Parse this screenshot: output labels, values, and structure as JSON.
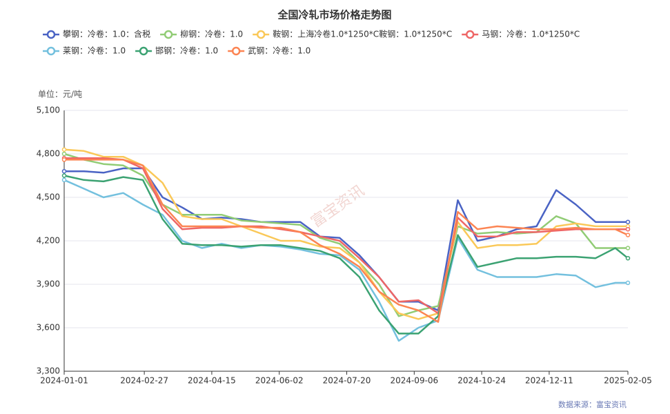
{
  "chart_data": {
    "type": "line",
    "title": "全国冷轧市场价格走势图",
    "y_label": "单位：元/吨",
    "source": "数据来源：富宝资讯",
    "watermark": "富宝资讯",
    "x": [
      "2024-01-01",
      "2024-01-15",
      "2024-01-29",
      "2024-02-12",
      "2024-02-26",
      "2024-03-11",
      "2024-03-25",
      "2024-04-08",
      "2024-04-22",
      "2024-05-06",
      "2024-05-20",
      "2024-06-03",
      "2024-06-17",
      "2024-07-01",
      "2024-07-15",
      "2024-07-29",
      "2024-08-12",
      "2024-08-26",
      "2024-09-09",
      "2024-09-23",
      "2024-10-07",
      "2024-10-21",
      "2024-11-04",
      "2024-11-18",
      "2024-12-02",
      "2024-12-16",
      "2024-12-30",
      "2025-01-13",
      "2025-01-27",
      "2025-02-05"
    ],
    "xlim": [
      "2024-01-01",
      "2025-02-05"
    ],
    "xticks": [
      "2024-01-01",
      "2024-02-27",
      "2024-04-15",
      "2024-06-02",
      "2024-07-20",
      "2024-09-06",
      "2024-10-24",
      "2024-12-11",
      "2025-02-05"
    ],
    "ylim": [
      3300,
      5100
    ],
    "yticks": [
      {
        "value": 3300,
        "label": "3,300"
      },
      {
        "value": 3600,
        "label": "3,600"
      },
      {
        "value": 3900,
        "label": "3,900"
      },
      {
        "value": 4200,
        "label": "4,200"
      },
      {
        "value": 4500,
        "label": "4,500"
      },
      {
        "value": 4800,
        "label": "4,800"
      },
      {
        "value": 5100,
        "label": "5,100"
      }
    ],
    "grid": true,
    "series": [
      {
        "name": "攀钢：冷卷：1.0：含税",
        "color": "#4a63c4",
        "values": [
          4680,
          4680,
          4670,
          4700,
          4700,
          4500,
          4430,
          4350,
          4360,
          4350,
          4330,
          4330,
          4330,
          4230,
          4220,
          4100,
          3950,
          3780,
          3780,
          3720,
          4480,
          4200,
          4230,
          4280,
          4300,
          4550,
          4450,
          4330,
          4330,
          4330
        ]
      },
      {
        "name": "柳钢：冷卷：1.0",
        "color": "#91cc75",
        "values": [
          4800,
          4760,
          4730,
          4720,
          4650,
          4450,
          4380,
          4380,
          4380,
          4340,
          4330,
          4320,
          4310,
          4220,
          4180,
          4050,
          3900,
          3680,
          3720,
          3750,
          4300,
          4250,
          4260,
          4250,
          4260,
          4370,
          4320,
          4150,
          4150,
          4150
        ]
      },
      {
        "name": "鞍钢：上海冷卷1.0*1250*C鞍钢：1.0*1250*C",
        "color": "#fac858",
        "values": [
          4830,
          4820,
          4780,
          4780,
          4720,
          4600,
          4370,
          4350,
          4350,
          4300,
          4250,
          4200,
          4200,
          4160,
          4150,
          4050,
          3850,
          3700,
          3660,
          3700,
          4330,
          4150,
          4170,
          4170,
          4180,
          4300,
          4320,
          4300,
          4300,
          4300
        ]
      },
      {
        "name": "马钢：冷卷：1.0*1250*C",
        "color": "#ee6666",
        "values": [
          4770,
          4770,
          4770,
          4760,
          4700,
          4420,
          4280,
          4290,
          4290,
          4300,
          4300,
          4280,
          4260,
          4230,
          4200,
          4080,
          3950,
          3780,
          3790,
          3700,
          4360,
          4230,
          4230,
          4260,
          4260,
          4270,
          4280,
          4280,
          4280,
          4280
        ]
      },
      {
        "name": "莱钢：冷卷：1.0",
        "color": "#73c0de",
        "values": [
          4620,
          4560,
          4500,
          4530,
          4450,
          4380,
          4200,
          4150,
          4180,
          4150,
          4170,
          4160,
          4140,
          4110,
          4100,
          4000,
          3780,
          3510,
          3600,
          3650,
          4220,
          4000,
          3950,
          3950,
          3950,
          3970,
          3960,
          3880,
          3910,
          3910
        ]
      },
      {
        "name": "邯钢：冷卷：1.0",
        "color": "#3ba272",
        "values": [
          4650,
          4620,
          4610,
          4640,
          4620,
          4350,
          4180,
          4170,
          4170,
          4160,
          4170,
          4170,
          4150,
          4130,
          4080,
          3950,
          3720,
          3560,
          3560,
          3680,
          4240,
          4020,
          4050,
          4080,
          4080,
          4090,
          4090,
          4080,
          4150,
          4080
        ]
      },
      {
        "name": "武钢：冷卷：1.0",
        "color": "#fc8452",
        "values": [
          4760,
          4760,
          4760,
          4760,
          4720,
          4450,
          4300,
          4300,
          4300,
          4300,
          4290,
          4290,
          4260,
          4170,
          4110,
          4020,
          3850,
          3760,
          3720,
          3640,
          4400,
          4280,
          4300,
          4290,
          4280,
          4280,
          4290,
          4280,
          4280,
          4240
        ]
      }
    ]
  }
}
